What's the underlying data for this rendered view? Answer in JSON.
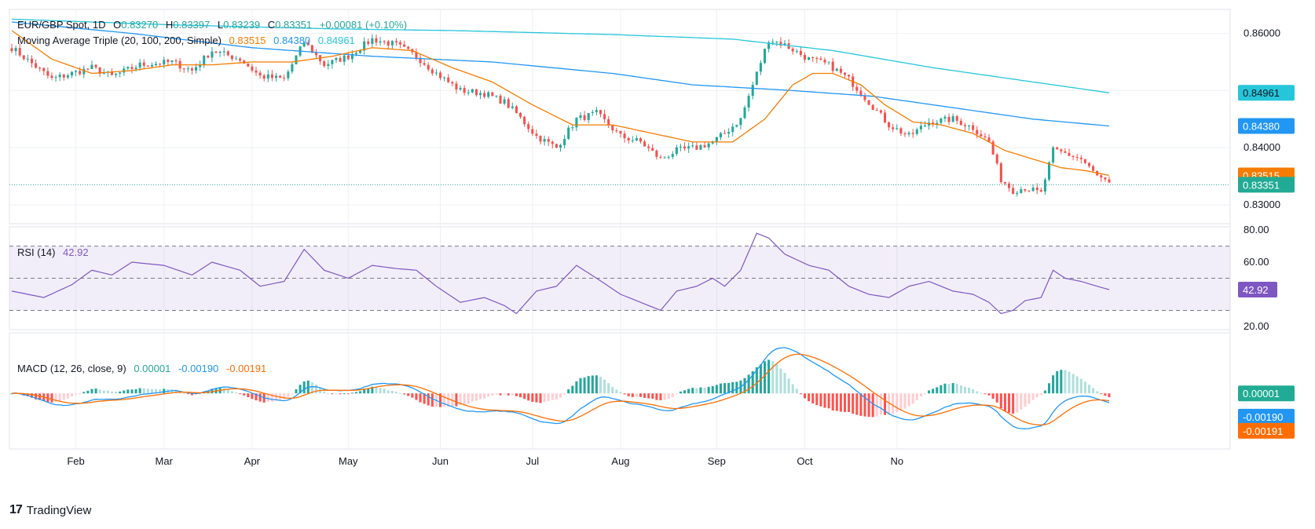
{
  "colors": {
    "up": "#26a69a",
    "down": "#ef5350",
    "ma20": "#f57c00",
    "ma100": "#2196f3",
    "ma200": "#26c6da",
    "rsi": "#7e57c2",
    "macd": "#2196f3",
    "signal": "#ff6d00",
    "histUp": "#26a69a",
    "histUpLight": "#b2dfdb",
    "histDown": "#ff5252",
    "histDownLight": "#ffcdd2",
    "grid": "#eef0f4",
    "text": "#131722"
  },
  "header": {
    "symbol": "EUR/GBP Spot, 1D",
    "o_label": "O",
    "o": "0.83270",
    "h_label": "H",
    "h": "0.83397",
    "l_label": "L",
    "l": "0.83239",
    "c_label": "C",
    "c": "0.83351",
    "change": "+0.00081 (+0.10%)"
  },
  "ma_legend": {
    "name": "Moving Average Triple (20, 100, 200, Simple)",
    "v1": "0.83515",
    "v2": "0.84380",
    "v3": "0.84961"
  },
  "rsi_legend": {
    "name": "RSI (14)",
    "value": "42.92"
  },
  "macd_legend": {
    "name": "MACD (12, 26, close, 9)",
    "hist": "0.00001",
    "macd": "-0.00190",
    "signal": "-0.00191"
  },
  "branding": {
    "logo_mark": "17",
    "text": "TradingView"
  },
  "chart_data": {
    "type": "candlestick",
    "x_ticks": [
      "Feb",
      "Mar",
      "Apr",
      "May",
      "Jun",
      "Jul",
      "Aug",
      "Sep",
      "Oct",
      "No"
    ],
    "price_axis": {
      "ticks": [
        "0.86000",
        "0.85000",
        "0.84000",
        "0.83000"
      ],
      "ylim": [
        0.8267,
        0.8642
      ]
    },
    "price_badges": [
      {
        "label": "0.84961",
        "value": 0.84961,
        "series": "ma200"
      },
      {
        "label": "0.84380",
        "value": 0.8438,
        "series": "ma100"
      },
      {
        "label": "0.83515",
        "value": 0.83515,
        "series": "ma20"
      },
      {
        "label": "0.83351",
        "value": 0.83351,
        "series": "close"
      }
    ],
    "close_anchors": [
      [
        0,
        0.8575
      ],
      [
        10,
        0.852
      ],
      [
        20,
        0.854
      ],
      [
        25,
        0.8525
      ],
      [
        32,
        0.8545
      ],
      [
        40,
        0.855
      ],
      [
        45,
        0.8535
      ],
      [
        50,
        0.857
      ],
      [
        57,
        0.8555
      ],
      [
        62,
        0.8525
      ],
      [
        68,
        0.852
      ],
      [
        73,
        0.8585
      ],
      [
        78,
        0.8545
      ],
      [
        84,
        0.856
      ],
      [
        90,
        0.859
      ],
      [
        96,
        0.858
      ],
      [
        101,
        0.856
      ],
      [
        106,
        0.853
      ],
      [
        112,
        0.85
      ],
      [
        118,
        0.8495
      ],
      [
        123,
        0.848
      ],
      [
        126,
        0.846
      ],
      [
        131,
        0.842
      ],
      [
        136,
        0.84
      ],
      [
        141,
        0.845
      ],
      [
        146,
        0.846
      ],
      [
        152,
        0.842
      ],
      [
        157,
        0.841
      ],
      [
        162,
        0.838
      ],
      [
        166,
        0.8395
      ],
      [
        171,
        0.84
      ],
      [
        175,
        0.841
      ],
      [
        178,
        0.8425
      ],
      [
        182,
        0.845
      ],
      [
        186,
        0.853
      ],
      [
        189,
        0.859
      ],
      [
        193,
        0.858
      ],
      [
        199,
        0.8555
      ],
      [
        204,
        0.8545
      ],
      [
        209,
        0.852
      ],
      [
        214,
        0.848
      ],
      [
        219,
        0.844
      ],
      [
        224,
        0.842
      ],
      [
        229,
        0.8445
      ],
      [
        235,
        0.845
      ],
      [
        240,
        0.8435
      ],
      [
        244,
        0.841
      ],
      [
        247,
        0.8345
      ],
      [
        250,
        0.8325
      ],
      [
        253,
        0.833
      ],
      [
        257,
        0.832
      ],
      [
        260,
        0.8395
      ],
      [
        263,
        0.839
      ],
      [
        267,
        0.838
      ],
      [
        271,
        0.835
      ],
      [
        274,
        0.8335
      ]
    ],
    "ma20_anchors": [
      [
        0,
        0.8605
      ],
      [
        10,
        0.8555
      ],
      [
        20,
        0.853
      ],
      [
        30,
        0.8535
      ],
      [
        40,
        0.8545
      ],
      [
        50,
        0.8545
      ],
      [
        60,
        0.855
      ],
      [
        70,
        0.855
      ],
      [
        80,
        0.856
      ],
      [
        90,
        0.8575
      ],
      [
        100,
        0.857
      ],
      [
        110,
        0.854
      ],
      [
        120,
        0.8515
      ],
      [
        130,
        0.8475
      ],
      [
        140,
        0.844
      ],
      [
        150,
        0.844
      ],
      [
        160,
        0.8425
      ],
      [
        170,
        0.841
      ],
      [
        180,
        0.841
      ],
      [
        188,
        0.845
      ],
      [
        195,
        0.851
      ],
      [
        200,
        0.853
      ],
      [
        205,
        0.853
      ],
      [
        212,
        0.851
      ],
      [
        218,
        0.8475
      ],
      [
        225,
        0.8445
      ],
      [
        232,
        0.844
      ],
      [
        240,
        0.8425
      ],
      [
        248,
        0.8395
      ],
      [
        255,
        0.838
      ],
      [
        262,
        0.8365
      ],
      [
        268,
        0.836
      ],
      [
        274,
        0.83515
      ]
    ],
    "ma100_anchors": [
      [
        0,
        0.862
      ],
      [
        30,
        0.86
      ],
      [
        60,
        0.8575
      ],
      [
        90,
        0.856
      ],
      [
        120,
        0.855
      ],
      [
        150,
        0.853
      ],
      [
        170,
        0.851
      ],
      [
        195,
        0.85
      ],
      [
        215,
        0.849
      ],
      [
        235,
        0.847
      ],
      [
        255,
        0.845
      ],
      [
        274,
        0.8438
      ]
    ],
    "ma200_anchors": [
      [
        0,
        0.8625
      ],
      [
        40,
        0.8615
      ],
      [
        80,
        0.8608
      ],
      [
        110,
        0.8605
      ],
      [
        150,
        0.8598
      ],
      [
        180,
        0.859
      ],
      [
        205,
        0.857
      ],
      [
        230,
        0.854
      ],
      [
        255,
        0.8515
      ],
      [
        274,
        0.84961
      ]
    ],
    "rsi_axis": {
      "ticks": [
        "80.00",
        "60.00",
        "40.00",
        "20.00"
      ],
      "ylim": [
        18,
        82
      ],
      "bands": [
        70,
        50,
        30
      ]
    },
    "rsi_anchors": [
      [
        0,
        42
      ],
      [
        8,
        38
      ],
      [
        15,
        46
      ],
      [
        20,
        55
      ],
      [
        25,
        52
      ],
      [
        30,
        60
      ],
      [
        38,
        58
      ],
      [
        45,
        52
      ],
      [
        50,
        60
      ],
      [
        57,
        55
      ],
      [
        62,
        45
      ],
      [
        68,
        48
      ],
      [
        73,
        68
      ],
      [
        78,
        55
      ],
      [
        84,
        50
      ],
      [
        90,
        58
      ],
      [
        96,
        56
      ],
      [
        101,
        55
      ],
      [
        106,
        45
      ],
      [
        112,
        35
      ],
      [
        118,
        38
      ],
      [
        123,
        33
      ],
      [
        126,
        28
      ],
      [
        131,
        42
      ],
      [
        136,
        45
      ],
      [
        141,
        58
      ],
      [
        146,
        50
      ],
      [
        152,
        40
      ],
      [
        157,
        35
      ],
      [
        162,
        30
      ],
      [
        166,
        42
      ],
      [
        171,
        45
      ],
      [
        175,
        50
      ],
      [
        178,
        45
      ],
      [
        182,
        55
      ],
      [
        186,
        78
      ],
      [
        189,
        75
      ],
      [
        193,
        65
      ],
      [
        199,
        58
      ],
      [
        204,
        55
      ],
      [
        209,
        45
      ],
      [
        214,
        40
      ],
      [
        219,
        38
      ],
      [
        224,
        45
      ],
      [
        229,
        48
      ],
      [
        235,
        42
      ],
      [
        240,
        40
      ],
      [
        244,
        35
      ],
      [
        247,
        28
      ],
      [
        250,
        30
      ],
      [
        253,
        36
      ],
      [
        257,
        38
      ],
      [
        260,
        55
      ],
      [
        263,
        50
      ],
      [
        267,
        48
      ],
      [
        271,
        45
      ],
      [
        274,
        42.92
      ]
    ],
    "macd_axis": {
      "ylim": [
        -0.0055,
        0.006
      ]
    },
    "macd_badges": [
      {
        "label": "0.00001",
        "value": 1e-05,
        "series": "hist"
      },
      {
        "label": "-0.00190",
        "value": -0.0019,
        "series": "macd"
      },
      {
        "label": "-0.00191",
        "value": -0.00191,
        "series": "signal"
      }
    ]
  }
}
